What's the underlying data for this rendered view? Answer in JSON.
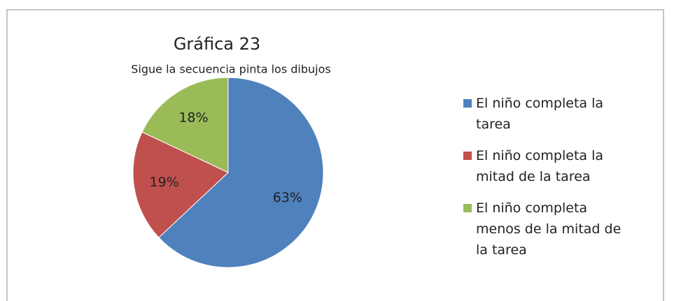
{
  "chart_data": {
    "type": "pie",
    "title": "Gráfica 23",
    "subtitle": "Sigue la secuencia pinta los dibujos",
    "categories": [
      "El niño completa la tarea",
      "El niño completa la mitad de la tarea",
      "El niño completa menos de la mitad de la tarea"
    ],
    "values": [
      63,
      19,
      18
    ],
    "value_labels": [
      "63%",
      "19%",
      "18%"
    ],
    "colors": [
      "#4f81bd",
      "#c0504d",
      "#9bbb59"
    ],
    "legend": "right"
  }
}
